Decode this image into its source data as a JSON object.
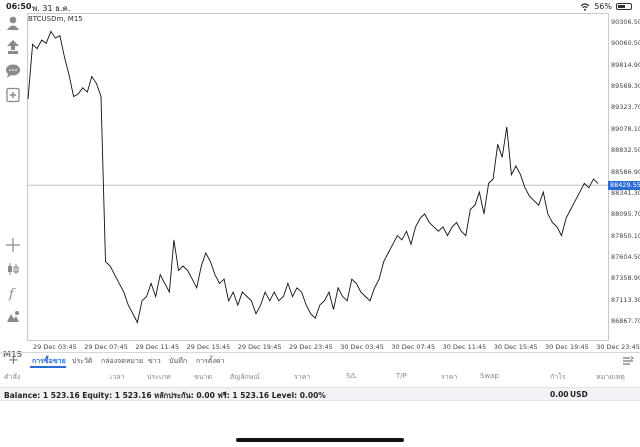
{
  "status_bar": {
    "time": "06:50",
    "date": "พ. 31 ธ.ค.",
    "battery_percent": "56%",
    "battery_level": 0.56
  },
  "chart": {
    "title": "BTCUSDm, M15",
    "timeframe_label": "M15",
    "current_price": "88429.55",
    "accent_color": "#2b6bd8"
  },
  "chart_data": {
    "type": "line",
    "title": "BTCUSDm, M15",
    "x_tick_labels": [
      "29 Dec 03:45",
      "29 Dec 07:45",
      "29 Dec 11:45",
      "29 Dec 15:45",
      "29 Dec 19:45",
      "29 Dec 23:45",
      "30 Dec 03:45",
      "30 Dec 07:45",
      "30 Dec 11:45",
      "30 Dec 15:45",
      "30 Dec 19:45",
      "30 Dec 23:45"
    ],
    "y_tick_labels": [
      "90306.50",
      "90060.50",
      "89814.90",
      "89569.30",
      "89323.70",
      "89078.10",
      "88832.50",
      "88586.90",
      "88341.30",
      "88095.70",
      "87850.10",
      "87604.50",
      "87358.90",
      "87113.30",
      "86867.70"
    ],
    "ylim": [
      86867.7,
      90306.5
    ],
    "current_price": 88429.55,
    "grid": false,
    "y": [
      89420,
      90050,
      90000,
      90100,
      90060,
      90200,
      90120,
      90150,
      89900,
      89700,
      89450,
      89480,
      89550,
      89500,
      89680,
      89600,
      89450,
      87550,
      87500,
      87400,
      87300,
      87200,
      87050,
      86950,
      86850,
      87100,
      87150,
      87300,
      87150,
      87400,
      87300,
      87200,
      87800,
      87450,
      87500,
      87450,
      87350,
      87250,
      87500,
      87650,
      87550,
      87400,
      87300,
      87350,
      87100,
      87200,
      87050,
      87200,
      87150,
      87100,
      86950,
      87050,
      87200,
      87100,
      87200,
      87100,
      87150,
      87300,
      87150,
      87250,
      87200,
      87050,
      86950,
      86900,
      87050,
      87100,
      87200,
      87000,
      87250,
      87150,
      87100,
      87350,
      87300,
      87200,
      87150,
      87100,
      87250,
      87350,
      87550,
      87650,
      87750,
      87850,
      87800,
      87900,
      87750,
      87950,
      88050,
      88100,
      88000,
      87950,
      87900,
      87950,
      87850,
      87950,
      88000,
      87900,
      87850,
      88150,
      88200,
      88350,
      88100,
      88450,
      88500,
      88900,
      88750,
      89100,
      88550,
      88650,
      88550,
      88400,
      88300,
      88250,
      88200,
      88350,
      88100,
      88000,
      87950,
      87850,
      88050,
      88150,
      88250,
      88350,
      88450,
      88400,
      88500,
      88450
    ]
  },
  "tabs": [
    {
      "label": "การซื้อขาย"
    },
    {
      "label": "ประวัติ"
    },
    {
      "label": "กล่องจดหมาย"
    },
    {
      "label": "ข่าว"
    },
    {
      "label": "บันทึก"
    },
    {
      "label": "การตั้งค่า"
    }
  ],
  "table_headers": [
    "คำสั่ง",
    "เวลา",
    "ประเภท",
    "ขนาด",
    "สัญลักษณ์",
    "ราคา",
    "S/L",
    "T/P",
    "ราคา",
    "Swap",
    "กำไร",
    "หมายเหตุ"
  ],
  "balance": {
    "summary": "Balance: 1 523.16 Equity: 1 523.16 หลักประกัน: 0.00 ฟรี: 1 523.16 Level: 0.00%",
    "profit": "0.00",
    "currency": "USD"
  }
}
